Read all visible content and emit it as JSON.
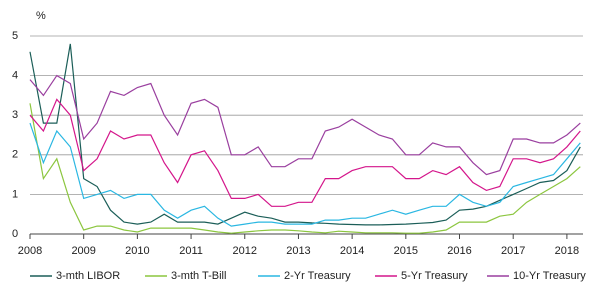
{
  "chart_data": {
    "type": "line",
    "y_unit": "%",
    "x": [
      2008,
      2008.25,
      2008.5,
      2008.75,
      2009,
      2009.25,
      2009.5,
      2009.75,
      2010,
      2010.25,
      2010.5,
      2010.75,
      2011,
      2011.25,
      2011.5,
      2011.75,
      2012,
      2012.25,
      2012.5,
      2012.75,
      2013,
      2013.25,
      2013.5,
      2013.75,
      2014,
      2014.25,
      2014.5,
      2014.75,
      2015,
      2015.25,
      2015.5,
      2015.75,
      2016,
      2016.25,
      2016.5,
      2016.75,
      2017,
      2017.25,
      2017.5,
      2017.75,
      2018,
      2018.25
    ],
    "xlim": [
      2008,
      2018.3
    ],
    "xticks": [
      2008,
      2009,
      2010,
      2011,
      2012,
      2013,
      2014,
      2015,
      2016,
      2017,
      2018
    ],
    "ylim": [
      0,
      5
    ],
    "yticks": [
      0,
      1,
      2,
      3,
      4,
      5
    ],
    "grid": true,
    "series": [
      {
        "name": "3-mth LIBOR",
        "color": "#1b5e58",
        "values": [
          4.6,
          2.8,
          2.8,
          4.8,
          1.4,
          1.2,
          0.6,
          0.3,
          0.25,
          0.3,
          0.5,
          0.3,
          0.3,
          0.3,
          0.25,
          0.4,
          0.55,
          0.45,
          0.4,
          0.3,
          0.3,
          0.28,
          0.27,
          0.25,
          0.24,
          0.23,
          0.23,
          0.24,
          0.25,
          0.27,
          0.29,
          0.35,
          0.6,
          0.63,
          0.7,
          0.85,
          1.0,
          1.15,
          1.3,
          1.35,
          1.6,
          2.2
        ]
      },
      {
        "name": "3-mth T-Bill",
        "color": "#8cc63f",
        "values": [
          3.3,
          1.4,
          1.9,
          0.8,
          0.1,
          0.2,
          0.2,
          0.1,
          0.05,
          0.15,
          0.15,
          0.15,
          0.15,
          0.1,
          0.05,
          0.02,
          0.05,
          0.08,
          0.1,
          0.1,
          0.08,
          0.05,
          0.03,
          0.07,
          0.05,
          0.03,
          0.03,
          0.03,
          0.02,
          0.02,
          0.05,
          0.1,
          0.3,
          0.3,
          0.3,
          0.45,
          0.5,
          0.8,
          1.0,
          1.2,
          1.4,
          1.7
        ]
      },
      {
        "name": "2-Yr Treasury",
        "color": "#2ab7e2",
        "values": [
          2.8,
          1.8,
          2.6,
          2.2,
          0.9,
          1.0,
          1.1,
          0.9,
          1.0,
          1.0,
          0.6,
          0.4,
          0.6,
          0.7,
          0.4,
          0.2,
          0.25,
          0.3,
          0.3,
          0.25,
          0.25,
          0.25,
          0.35,
          0.35,
          0.4,
          0.4,
          0.5,
          0.6,
          0.5,
          0.6,
          0.7,
          0.7,
          1.0,
          0.8,
          0.7,
          0.8,
          1.2,
          1.3,
          1.4,
          1.5,
          1.9,
          2.3
        ]
      },
      {
        "name": "5-Yr Treasury",
        "color": "#d4168b",
        "values": [
          3.0,
          2.6,
          3.4,
          3.0,
          1.6,
          1.9,
          2.6,
          2.4,
          2.5,
          2.5,
          1.8,
          1.3,
          2.0,
          2.1,
          1.6,
          0.9,
          0.9,
          1.0,
          0.7,
          0.7,
          0.8,
          0.8,
          1.4,
          1.4,
          1.6,
          1.7,
          1.7,
          1.7,
          1.4,
          1.4,
          1.6,
          1.5,
          1.7,
          1.3,
          1.1,
          1.2,
          1.9,
          1.9,
          1.8,
          1.9,
          2.2,
          2.6
        ]
      },
      {
        "name": "10-Yr Treasury",
        "color": "#9a3f9f",
        "values": [
          3.9,
          3.5,
          4.0,
          3.8,
          2.4,
          2.8,
          3.6,
          3.5,
          3.7,
          3.8,
          3.0,
          2.5,
          3.3,
          3.4,
          3.2,
          2.0,
          2.0,
          2.2,
          1.7,
          1.7,
          1.9,
          1.9,
          2.6,
          2.7,
          2.9,
          2.7,
          2.5,
          2.4,
          2.0,
          2.0,
          2.3,
          2.2,
          2.2,
          1.8,
          1.5,
          1.6,
          2.4,
          2.4,
          2.3,
          2.3,
          2.5,
          2.8
        ]
      }
    ]
  }
}
